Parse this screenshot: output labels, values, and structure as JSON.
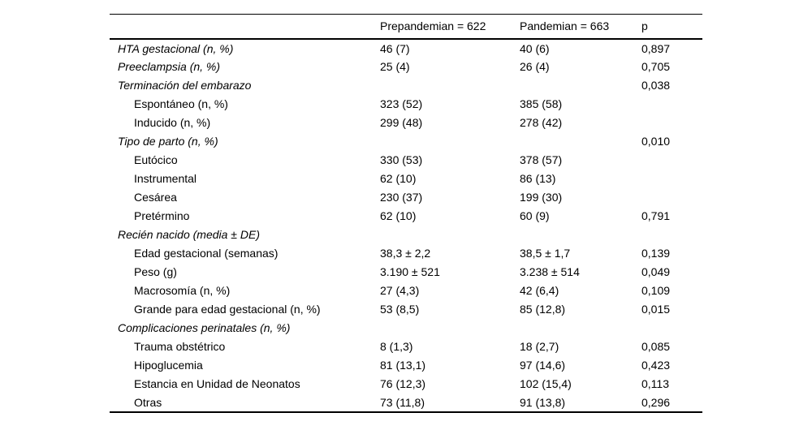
{
  "table": {
    "columns": [
      "",
      "Prepandemian = 622",
      "Pandemian = 663",
      "p"
    ],
    "rows": [
      {
        "label": "HTA gestacional (n, %)",
        "style": "category",
        "prepandemic": "46 (7)",
        "pandemic": "40 (6)",
        "p": "0,897"
      },
      {
        "label": "Preeclampsia (n, %)",
        "style": "category",
        "prepandemic": "25 (4)",
        "pandemic": "26 (4)",
        "p": "0,705"
      },
      {
        "label": "Terminación del embarazo",
        "style": "category",
        "prepandemic": "",
        "pandemic": "",
        "p": "0,038"
      },
      {
        "label": "Espontáneo (n, %)",
        "style": "sub",
        "prepandemic": "323 (52)",
        "pandemic": "385 (58)",
        "p": ""
      },
      {
        "label": "Inducido (n, %)",
        "style": "sub",
        "prepandemic": "299 (48)",
        "pandemic": "278 (42)",
        "p": ""
      },
      {
        "label": "Tipo de parto (n, %)",
        "style": "category",
        "prepandemic": "",
        "pandemic": "",
        "p": "0,010"
      },
      {
        "label": "Eutócico",
        "style": "sub",
        "prepandemic": "330 (53)",
        "pandemic": "378 (57)",
        "p": ""
      },
      {
        "label": "Instrumental",
        "style": "sub",
        "prepandemic": "62 (10)",
        "pandemic": "86 (13)",
        "p": ""
      },
      {
        "label": "Cesárea",
        "style": "sub",
        "prepandemic": "230 (37)",
        "pandemic": "199 (30)",
        "p": ""
      },
      {
        "label": "Pretérmino",
        "style": "sub",
        "prepandemic": "62 (10)",
        "pandemic": "60 (9)",
        "p": "0,791"
      },
      {
        "label": "Recién nacido (media ± DE)",
        "style": "category",
        "prepandemic": "",
        "pandemic": "",
        "p": ""
      },
      {
        "label": "Edad gestacional (semanas)",
        "style": "sub",
        "prepandemic": "38,3 ± 2,2",
        "pandemic": "38,5 ± 1,7",
        "p": "0,139"
      },
      {
        "label": "Peso (g)",
        "style": "sub",
        "prepandemic": "3.190 ± 521",
        "pandemic": "3.238 ± 514",
        "p": "0,049"
      },
      {
        "label": "Macrosomía (n, %)",
        "style": "sub",
        "prepandemic": "27 (4,3)",
        "pandemic": "42 (6,4)",
        "p": "0,109"
      },
      {
        "label": "Grande para edad gestacional (n, %)",
        "style": "sub",
        "prepandemic": "53 (8,5)",
        "pandemic": "85 (12,8)",
        "p": "0,015"
      },
      {
        "label": "Complicaciones perinatales (n, %)",
        "style": "category",
        "prepandemic": "",
        "pandemic": "",
        "p": ""
      },
      {
        "label": "Trauma obstétrico",
        "style": "sub",
        "prepandemic": "8 (1,3)",
        "pandemic": "18 (2,7)",
        "p": "0,085"
      },
      {
        "label": "Hipoglucemia",
        "style": "sub",
        "prepandemic": "81 (13,1)",
        "pandemic": "97 (14,6)",
        "p": "0,423"
      },
      {
        "label": "Estancia en Unidad de Neonatos",
        "style": "sub",
        "prepandemic": "76 (12,3)",
        "pandemic": "102 (15,4)",
        "p": "0,113"
      },
      {
        "label": "Otras",
        "style": "sub",
        "prepandemic": "73 (11,8)",
        "pandemic": "91 (13,8)",
        "p": "0,296"
      }
    ]
  }
}
